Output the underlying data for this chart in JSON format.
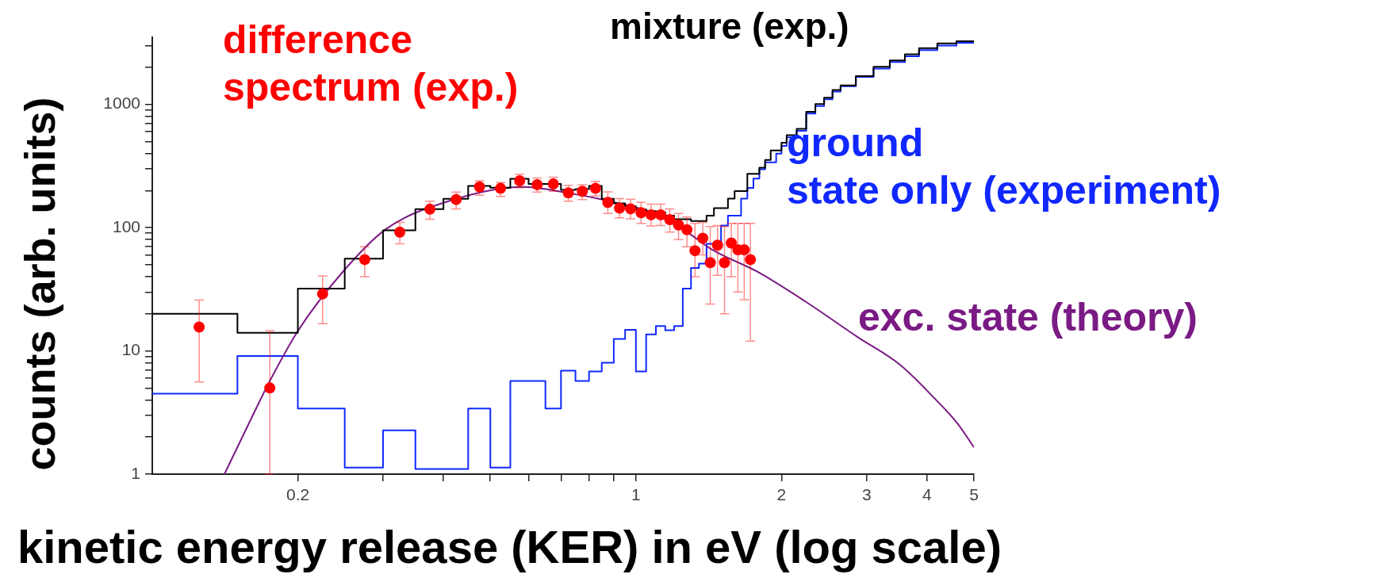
{
  "chart_data": {
    "type": "step",
    "xlabel": "kinetic energy release (KER) in eV (log scale)",
    "ylabel": "counts (arb. units)",
    "log": "xy",
    "legend": false,
    "grid": false,
    "xlim": [
      0.1,
      5
    ],
    "ylim": [
      1,
      3500
    ],
    "xticks": [
      0.2,
      {
        "value": 0.3,
        "label": null
      },
      {
        "value": 0.4,
        "label": null
      },
      {
        "value": 0.5,
        "label": null
      },
      {
        "value": 0.6,
        "label": null
      },
      {
        "value": 0.7,
        "label": null
      },
      {
        "value": 0.8,
        "label": null
      },
      {
        "value": 0.9,
        "label": null
      },
      1,
      2,
      3,
      4,
      5
    ],
    "yticks": [
      1,
      {
        "value": 2,
        "label": null
      },
      {
        "value": 3,
        "label": null
      },
      {
        "value": 4,
        "label": null
      },
      {
        "value": 5,
        "label": null
      },
      {
        "value": 6,
        "label": null
      },
      {
        "value": 7,
        "label": null
      },
      {
        "value": 8,
        "label": null
      },
      {
        "value": 9,
        "label": null
      },
      10,
      {
        "value": 20,
        "label": null
      },
      {
        "value": 30,
        "label": null
      },
      {
        "value": 40,
        "label": null
      },
      {
        "value": 50,
        "label": null
      },
      {
        "value": 60,
        "label": null
      },
      {
        "value": 70,
        "label": null
      },
      {
        "value": 80,
        "label": null
      },
      {
        "value": 90,
        "label": null
      },
      100,
      {
        "value": 200,
        "label": null
      },
      {
        "value": 300,
        "label": null
      },
      {
        "value": 400,
        "label": null
      },
      {
        "value": 500,
        "label": null
      },
      {
        "value": 600,
        "label": null
      },
      {
        "value": 700,
        "label": null
      },
      {
        "value": 800,
        "label": null
      },
      {
        "value": 900,
        "label": null
      },
      1000,
      {
        "value": 2000,
        "label": null
      },
      {
        "value": 3000,
        "label": null
      }
    ],
    "series": [
      {
        "name": "mixture (exp.)",
        "color": "#000000",
        "x": [
          0.1,
          0.15,
          0.2,
          0.25,
          0.3,
          0.35,
          0.4,
          0.45,
          0.5,
          0.55,
          0.6,
          0.7,
          0.75,
          0.8,
          0.85,
          0.9,
          0.95,
          1.0,
          1.05,
          1.1,
          1.15,
          1.2,
          1.3,
          1.4,
          1.45,
          1.55,
          1.6,
          1.7,
          1.8,
          1.85,
          1.9,
          2.0,
          2.05,
          2.15,
          2.25,
          2.35,
          2.45,
          2.55,
          2.65,
          2.85,
          3.1,
          3.35,
          3.6,
          3.85,
          4.2,
          4.6,
          5.0
        ],
        "values": [
          20,
          14,
          32,
          56,
          95,
          141,
          171,
          218,
          211,
          249,
          226,
          202,
          205,
          218,
          171,
          157,
          149,
          140,
          136,
          133,
          125,
          117,
          113,
          125,
          144,
          172,
          198,
          273,
          306,
          354,
          422,
          488,
          563,
          633,
          870,
          1006,
          1130,
          1306,
          1426,
          1695,
          2019,
          2266,
          2545,
          2857,
          3120,
          3245,
          3210
        ]
      },
      {
        "name": "ground state only (experiment)",
        "color": "#1028ff",
        "x": [
          0.1,
          0.15,
          0.2,
          0.25,
          0.3,
          0.35,
          0.45,
          0.5,
          0.55,
          0.65,
          0.7,
          0.75,
          0.8,
          0.85,
          0.9,
          0.95,
          1.0,
          1.05,
          1.1,
          1.15,
          1.2,
          1.25,
          1.3,
          1.35,
          1.4,
          1.5,
          1.55,
          1.65,
          1.7,
          1.75,
          1.8,
          1.85,
          1.95,
          2.0,
          2.05,
          2.15,
          2.25,
          2.35,
          2.45,
          2.55,
          2.65,
          2.85,
          3.1,
          3.35,
          3.6,
          3.85,
          4.2,
          4.6,
          5.0
        ],
        "values": [
          4.5,
          9.1,
          3.4,
          1.13,
          2.27,
          1.1,
          3.4,
          1.13,
          5.7,
          3.4,
          6.9,
          5.7,
          6.8,
          8,
          12.5,
          14.8,
          6.8,
          13.6,
          15.9,
          14.7,
          15.9,
          32,
          47,
          51,
          74,
          104,
          125,
          172,
          210,
          250,
          297,
          338,
          398,
          460,
          540,
          610,
          840,
          970,
          1100,
          1270,
          1400,
          1670,
          1950,
          2200,
          2450,
          2750,
          3000,
          3150,
          3120
        ]
      },
      {
        "name": "exc. state (theory)",
        "type": "line",
        "color": "#7a1a84",
        "x": [
          0.141,
          0.16,
          0.175,
          0.2,
          0.248,
          0.304,
          0.406,
          0.583,
          0.725,
          0.925,
          1.07,
          1.28,
          1.44,
          1.78,
          2.26,
          2.87,
          3.52,
          4.16,
          4.63,
          5.0
        ],
        "values": [
          1,
          2.8,
          5.7,
          14.5,
          44,
          97,
          162,
          214,
          191,
          157,
          134,
          91,
          66,
          44,
          24.6,
          13,
          7.7,
          4.06,
          2.56,
          1.65
        ]
      },
      {
        "name": "difference spectrum (exp.)",
        "type": "scatter",
        "marker": "circle",
        "color": "#ff0000",
        "x": [
          0.125,
          0.175,
          0.225,
          0.275,
          0.325,
          0.375,
          0.425,
          0.475,
          0.525,
          0.575,
          0.625,
          0.675,
          0.725,
          0.775,
          0.825,
          0.875,
          0.925,
          0.975,
          1.025,
          1.075,
          1.125,
          1.175,
          1.225,
          1.275,
          1.325,
          1.375,
          1.425,
          1.475,
          1.525,
          1.575,
          1.625,
          1.675,
          1.725
        ],
        "values": [
          15.6,
          5,
          29,
          55,
          92,
          141,
          169,
          214,
          208,
          240,
          223,
          226,
          191,
          197,
          208,
          160,
          144,
          142,
          132,
          127,
          127,
          116,
          105,
          96,
          65,
          82,
          52,
          72,
          52,
          75,
          66,
          66,
          55
        ],
        "errors": [
          [
            5.6,
            25.8
          ],
          [
            1,
            14.6
          ],
          [
            16.6,
            40.6
          ],
          [
            40,
            70
          ],
          [
            74,
            110
          ],
          [
            117,
            164
          ],
          [
            142,
            194
          ],
          [
            183,
            240
          ],
          [
            179,
            232
          ],
          [
            211,
            271
          ],
          [
            194,
            253
          ],
          [
            197,
            256
          ],
          [
            164,
            220
          ],
          [
            169,
            223
          ],
          [
            181,
            237
          ],
          [
            130,
            195
          ],
          [
            120,
            172
          ],
          [
            118,
            170
          ],
          [
            108,
            160
          ],
          [
            103,
            155
          ],
          [
            104,
            155
          ],
          [
            92,
            142
          ],
          [
            80,
            130
          ],
          [
            70,
            122
          ],
          [
            40,
            108
          ],
          [
            60,
            110
          ],
          [
            24,
            102
          ],
          [
            41,
            104
          ],
          [
            20,
            102
          ],
          [
            40,
            108
          ],
          [
            30,
            108
          ],
          [
            26,
            108
          ],
          [
            12,
            108
          ]
        ]
      }
    ]
  }
}
